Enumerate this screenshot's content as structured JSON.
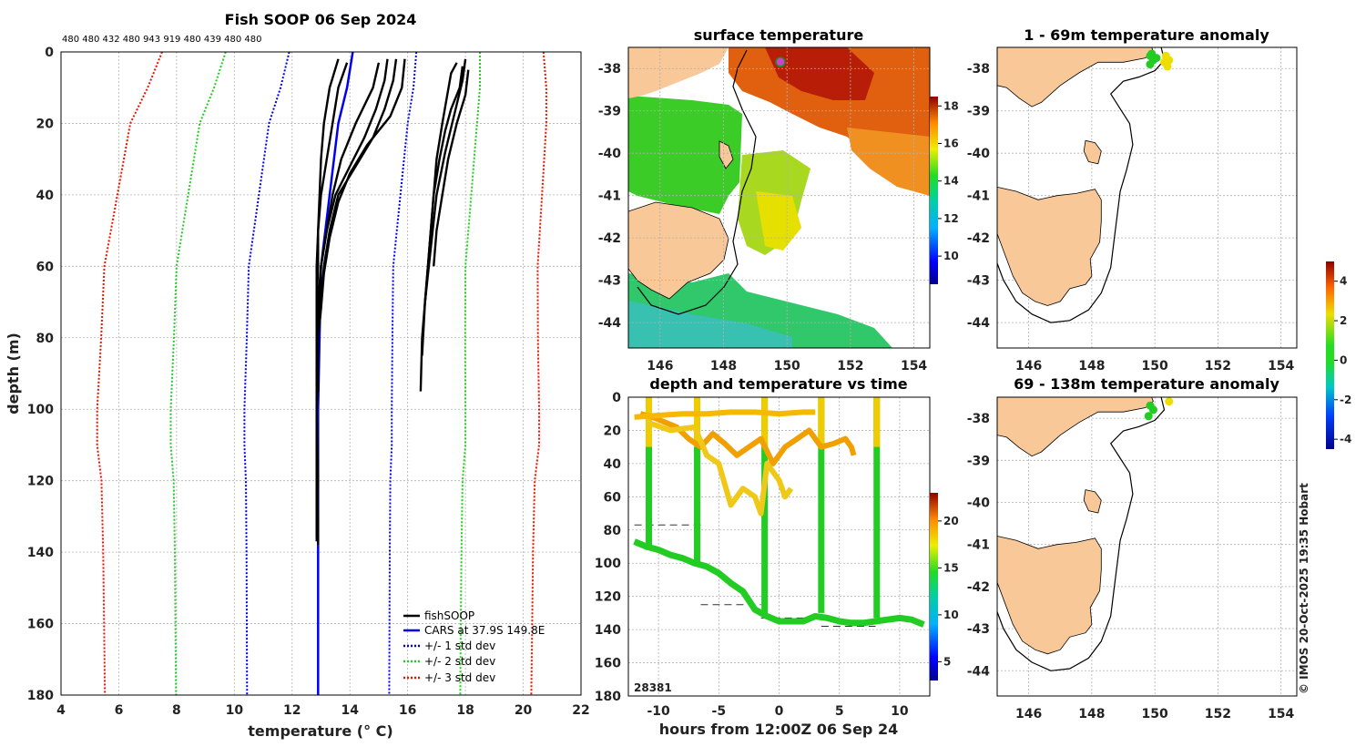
{
  "copyright": "© IMOS 20-Oct-2025 19:35 Hobart",
  "chart_data": [
    {
      "id": "profile",
      "type": "line",
      "title": "Fish SOOP 06 Sep 2024",
      "top_labels": "480 480 432 480 943 919 480 439 480 480",
      "xlabel": "temperature",
      "xlabel_unit": "(° C)",
      "ylabel": "depth (m)",
      "xlim": [
        4,
        22
      ],
      "ylim": [
        0,
        180
      ],
      "xticks": [
        4,
        6,
        8,
        10,
        12,
        14,
        16,
        18,
        20,
        22
      ],
      "yticks": [
        0,
        20,
        40,
        60,
        80,
        100,
        120,
        140,
        160,
        180
      ],
      "legend": [
        "fishSOOP",
        "CARS at 37.9S 149.8E",
        "+/- 1 std dev",
        "+/- 2 std dev",
        "+/- 3 std dev"
      ],
      "legend_colors": [
        "#000000",
        "#0000ee",
        "#0000ee",
        "#22cc22",
        "#ee1100"
      ],
      "clim_depth": [
        0,
        10,
        20,
        40,
        60,
        80,
        100,
        110,
        120,
        140,
        160,
        180
      ],
      "cars_mean": [
        14.1,
        13.9,
        13.6,
        13.3,
        13.0,
        12.95,
        12.9,
        12.9,
        12.9,
        12.9,
        12.9,
        12.9
      ],
      "std": [
        2.2,
        2.3,
        2.4,
        2.45,
        2.5,
        2.52,
        2.55,
        2.55,
        2.5,
        2.48,
        2.47,
        2.46
      ],
      "profiles": [
        {
          "depth": [
            2,
            10,
            20,
            30,
            40,
            50,
            60,
            70,
            80,
            100,
            120,
            136
          ],
          "temp": [
            13.6,
            13.3,
            13.1,
            13.0,
            12.95,
            12.9,
            12.9,
            12.85,
            12.85,
            12.85,
            12.85,
            12.85
          ]
        },
        {
          "depth": [
            3,
            10,
            20,
            30,
            40,
            50,
            60,
            70,
            80,
            100,
            120,
            137
          ],
          "temp": [
            13.9,
            13.6,
            13.4,
            13.2,
            13.0,
            12.9,
            12.85,
            12.85,
            12.85,
            12.85,
            12.9,
            12.85
          ]
        },
        {
          "depth": [
            2,
            8,
            16,
            24,
            32,
            40,
            50,
            60,
            70,
            80,
            90,
            100,
            110,
            120,
            130,
            138
          ],
          "temp": [
            15.3,
            15.2,
            14.9,
            14.5,
            14.0,
            13.5,
            13.2,
            13.0,
            12.9,
            12.9,
            12.9,
            12.85,
            12.85,
            12.85,
            12.9,
            12.9
          ]
        },
        {
          "depth": [
            2,
            8,
            16,
            24,
            32,
            40,
            50,
            60,
            70,
            80,
            95
          ],
          "temp": [
            15.6,
            15.5,
            15.2,
            14.8,
            14.2,
            13.6,
            13.3,
            13.1,
            13.0,
            12.9,
            12.9
          ]
        },
        {
          "depth": [
            2,
            10,
            18,
            26,
            34,
            42,
            52,
            62,
            72,
            80
          ],
          "temp": [
            15.9,
            15.8,
            15.4,
            14.6,
            14.0,
            13.6,
            13.3,
            13.1,
            13.0,
            12.9
          ]
        },
        {
          "depth": [
            3,
            10,
            20,
            30,
            40,
            50,
            60,
            70,
            75
          ],
          "temp": [
            15.0,
            14.8,
            14.2,
            13.7,
            13.4,
            13.2,
            13.0,
            12.95,
            12.9
          ]
        },
        {
          "depth": [
            3,
            6,
            20,
            30,
            40,
            60,
            80,
            95
          ],
          "temp": [
            17.7,
            17.5,
            17.2,
            17.0,
            16.9,
            16.7,
            16.5,
            16.45
          ]
        },
        {
          "depth": [
            2,
            8,
            18,
            28,
            40,
            55,
            70,
            85
          ],
          "temp": [
            18.0,
            17.9,
            17.6,
            17.3,
            17.0,
            16.8,
            16.6,
            16.5
          ]
        },
        {
          "depth": [
            4,
            10,
            16,
            22,
            30,
            40,
            50,
            60,
            70
          ],
          "temp": [
            17.9,
            17.8,
            17.5,
            17.3,
            17.1,
            16.9,
            16.8,
            16.7,
            16.6
          ]
        },
        {
          "depth": [
            5,
            12,
            20,
            30,
            40,
            50,
            60
          ],
          "temp": [
            18.1,
            18.0,
            17.7,
            17.4,
            17.2,
            17.0,
            16.9
          ]
        }
      ]
    },
    {
      "id": "sst-map",
      "type": "heatmap",
      "title": "surface temperature",
      "xticks": [
        146,
        148,
        150,
        152,
        154
      ],
      "yticks": [
        -38,
        -39,
        -40,
        -41,
        -42,
        -43,
        -44
      ],
      "xlim": [
        145,
        154.5
      ],
      "ylim": [
        -44.6,
        -37.5
      ],
      "colorbar_ticks": [
        10,
        12,
        14,
        16,
        18
      ],
      "clim": [
        8.5,
        18.5
      ]
    },
    {
      "id": "time-series",
      "type": "scatter",
      "title": "depth and temperature vs time",
      "xlabel": "hours from 12:00Z 06 Sep 24",
      "xticks": [
        -10,
        -5,
        0,
        5,
        10
      ],
      "yticks": [
        0,
        20,
        40,
        60,
        80,
        100,
        120,
        140,
        160,
        180
      ],
      "xlim": [
        -12.5,
        12.5
      ],
      "ylim": [
        0,
        180
      ],
      "colorbar_ticks": [
        5,
        10,
        15,
        20
      ],
      "clim": [
        3,
        23
      ],
      "corner_label": "28381",
      "deep_hours": [
        -12,
        -11,
        -10,
        -9,
        -8,
        -7,
        -6,
        -5,
        -4,
        -3,
        -2,
        -1,
        0,
        1,
        2,
        3,
        4,
        5,
        6,
        7,
        8,
        9,
        10,
        11,
        12
      ],
      "deep_depths": [
        87,
        90,
        92,
        95,
        97,
        100,
        102,
        106,
        112,
        117,
        128,
        132,
        135,
        135,
        135,
        132,
        133,
        135,
        136,
        136,
        135,
        134,
        133,
        134,
        137
      ],
      "casts_hours": [
        -10.8,
        -6.8,
        -1.2,
        3.5,
        8.1
      ],
      "casts_bottom": [
        92,
        100,
        132,
        130,
        133
      ],
      "shallow_series": [
        {
          "hours": [
            -11.5,
            -10.5,
            -9.5,
            -8.5,
            -7.5,
            -6.5,
            -5.5,
            -4.5,
            -3.5,
            -2.5,
            -1.5,
            -0.5,
            0.5,
            1.5,
            2.5,
            3.5,
            4.5,
            5.5,
            6,
            6.2
          ],
          "depths": [
            10,
            12,
            15,
            18,
            25,
            30,
            22,
            28,
            35,
            30,
            25,
            40,
            30,
            25,
            20,
            30,
            28,
            25,
            30,
            35
          ]
        },
        {
          "hours": [
            -12,
            -10,
            -8,
            -6,
            -4,
            -2,
            0,
            2,
            3
          ],
          "depths": [
            12,
            11,
            10,
            10,
            9,
            9,
            10,
            9,
            9
          ]
        },
        {
          "hours": [
            -11,
            -9,
            -7,
            -6,
            -5,
            -4,
            -3,
            -2,
            -1.5,
            -1,
            0,
            0.5,
            1
          ],
          "depths": [
            15,
            20,
            18,
            35,
            40,
            65,
            55,
            60,
            70,
            40,
            50,
            60,
            55
          ]
        }
      ],
      "ref_lines": [
        {
          "y": 77,
          "x1": -12,
          "x2": -6.5
        },
        {
          "y": 125,
          "x1": -6.5,
          "x2": -1.5
        },
        {
          "y": 133,
          "x1": -1.5,
          "x2": 3.5
        },
        {
          "y": 138,
          "x1": 3.5,
          "x2": 8
        }
      ]
    },
    {
      "id": "anomaly-shallow",
      "type": "scatter",
      "title": "1 - 69m temperature anomaly",
      "xticks": [
        146,
        148,
        150,
        152,
        154
      ],
      "yticks": [
        -38,
        -39,
        -40,
        -41,
        -42,
        -43,
        -44
      ],
      "xlim": [
        145,
        154.5
      ],
      "ylim": [
        -44.6,
        -37.5
      ],
      "points_lon": [
        149.85,
        149.95,
        149.85,
        150.05,
        149.9,
        150.35,
        150.45,
        150.4,
        150.3
      ],
      "points_lat": [
        -37.7,
        -37.8,
        -37.9,
        -37.75,
        -37.65,
        -37.7,
        -37.8,
        -37.95,
        -37.85
      ],
      "points_anom": [
        0.2,
        0.3,
        0.1,
        0.4,
        0.3,
        2.3,
        2.5,
        2.6,
        2.2
      ]
    },
    {
      "id": "anomaly-deep",
      "type": "scatter",
      "title": "69 - 138m temperature anomaly",
      "xticks": [
        146,
        148,
        150,
        152,
        154
      ],
      "yticks": [
        -38,
        -39,
        -40,
        -41,
        -42,
        -43,
        -44
      ],
      "xlim": [
        145,
        154.5
      ],
      "ylim": [
        -44.6,
        -37.5
      ],
      "points_lon": [
        149.85,
        149.95,
        149.8,
        150.45
      ],
      "points_lat": [
        -37.7,
        -37.8,
        -37.95,
        -37.6
      ],
      "points_anom": [
        0.3,
        0.4,
        0.2,
        2.6
      ],
      "colorbar_ticks": [
        4,
        2,
        0,
        -2,
        -4
      ],
      "clim": [
        -4.5,
        5
      ]
    }
  ]
}
